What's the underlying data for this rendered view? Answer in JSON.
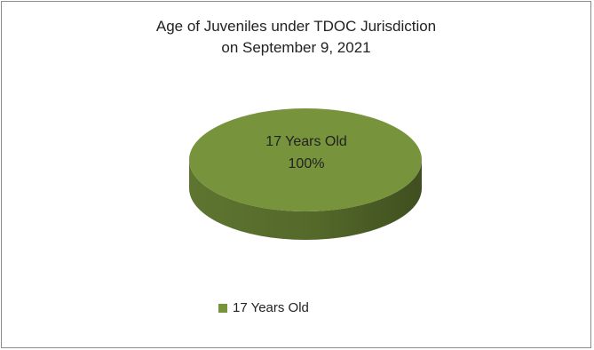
{
  "chart_data": {
    "type": "pie",
    "title_line1": "Age of Juveniles under TDOC Jurisdiction",
    "title_line2": "on September 9, 2021",
    "slices": [
      {
        "label": "17 Years Old",
        "value": 100,
        "percent_label": "100%",
        "color": "#77933c"
      }
    ],
    "style": "3d",
    "legend_position": "bottom-left",
    "legend": [
      "17 Years Old"
    ]
  }
}
